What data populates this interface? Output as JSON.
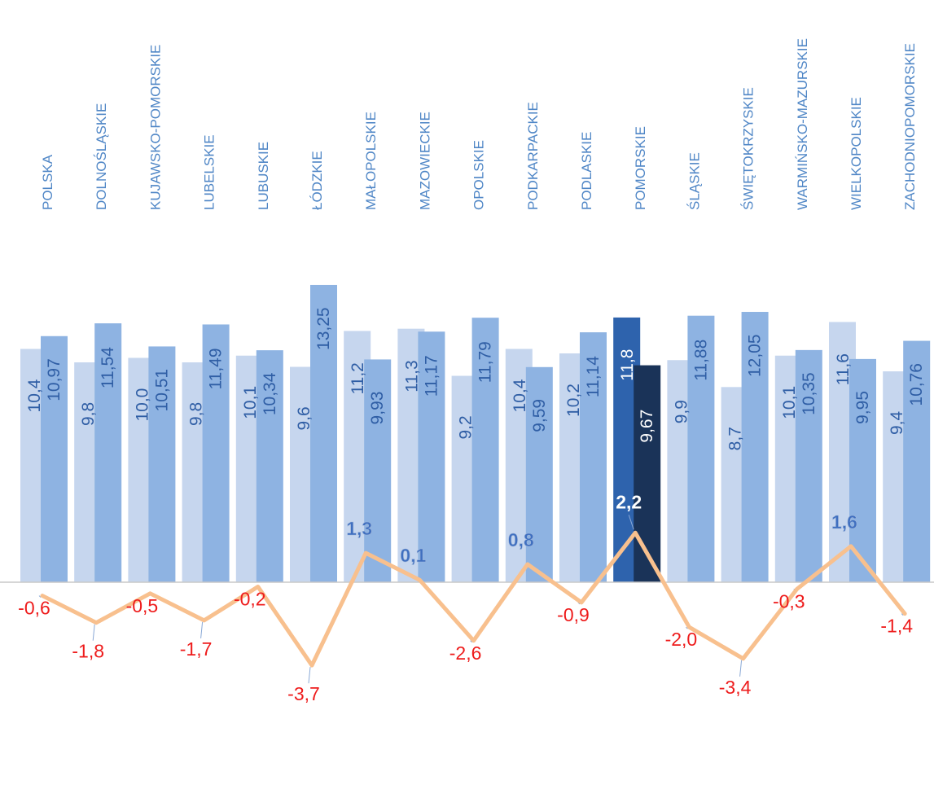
{
  "chart_data": {
    "type": "bar",
    "categories": [
      "POLSKA",
      "DOLNOŚLĄSKIE",
      "KUJAWSKO-POMORSKIE",
      "LUBELSKIE",
      "LUBUSKIE",
      "ŁÓDZKIE",
      "MAŁOPOLSKIE",
      "MAZOWIECKIE",
      "OPOLSKIE",
      "PODKARPACKIE",
      "PODLASKIE",
      "POMORSKIE",
      "ŚLĄSKIE",
      "ŚWIĘTOKRZYSKIE",
      "WARMIŃSKO-MAZURSKIE",
      "WIELKOPOLSKIE",
      "ZACHODNIOPOMORSKIE"
    ],
    "series": [
      {
        "values": [
          10.4,
          9.8,
          10.0,
          9.8,
          10.1,
          9.6,
          11.2,
          11.3,
          9.2,
          10.4,
          10.2,
          11.8,
          9.9,
          8.7,
          10.1,
          11.6,
          9.4
        ],
        "labels": [
          "10,4",
          "9,8",
          "10,0",
          "9,8",
          "10,1",
          "9,6",
          "11,2",
          "11,3",
          "9,2",
          "10,4",
          "10,2",
          "11,8",
          "9,9",
          "8,7",
          "10,1",
          "11,6",
          "9,4"
        ]
      },
      {
        "values": [
          10.97,
          11.54,
          10.51,
          11.49,
          10.34,
          13.25,
          9.93,
          11.17,
          11.79,
          9.59,
          11.14,
          9.67,
          11.88,
          12.05,
          10.35,
          9.95,
          10.76
        ],
        "labels": [
          "10,97",
          "11,54",
          "10,51",
          "11,49",
          "10,34",
          "13,25",
          "9,93",
          "11,17",
          "11,79",
          "9,59",
          "11,14",
          "9,67",
          "11,88",
          "12,05",
          "10,35",
          "9,95",
          "10,76"
        ]
      },
      {
        "type": "line",
        "values": [
          -0.6,
          -1.8,
          -0.5,
          -1.7,
          -0.2,
          -3.7,
          1.3,
          0.1,
          -2.6,
          0.8,
          -0.9,
          2.2,
          -2.0,
          -3.4,
          -0.3,
          1.6,
          -1.4
        ],
        "labels": [
          "-0,6",
          "-1,8",
          "-0,5",
          "-1,7",
          "-0,2",
          "-3,7",
          "1,3",
          "0,1",
          "-2,6",
          "0,8",
          "-0,9",
          "2,2",
          "-2,0",
          "-3,4",
          "-0,3",
          "1,6",
          "-1,4"
        ]
      }
    ],
    "highlight_category": "POMORSKIE",
    "colors": {
      "series1": "#c6d6ee",
      "series2": "#8eb3e2",
      "series1_highlight": "#2e63ad",
      "series2_highlight": "#1a3358",
      "line": "#f8c08e",
      "axis_line": "#c8c8c8",
      "category_text": "#4f86c6",
      "bar_label": "#2f5ea5",
      "bar_label_highlight": "#ffffff",
      "negative_label": "#ee1c1c",
      "positive_label": "#3f6fc0",
      "positive_label_highlight": "#ffffff",
      "leader_line": "#8aa9d6"
    },
    "ylim_bars": [
      0,
      15.5
    ],
    "ylim_line": [
      -3.7,
      4.0
    ],
    "grid": false,
    "legend": "none"
  }
}
